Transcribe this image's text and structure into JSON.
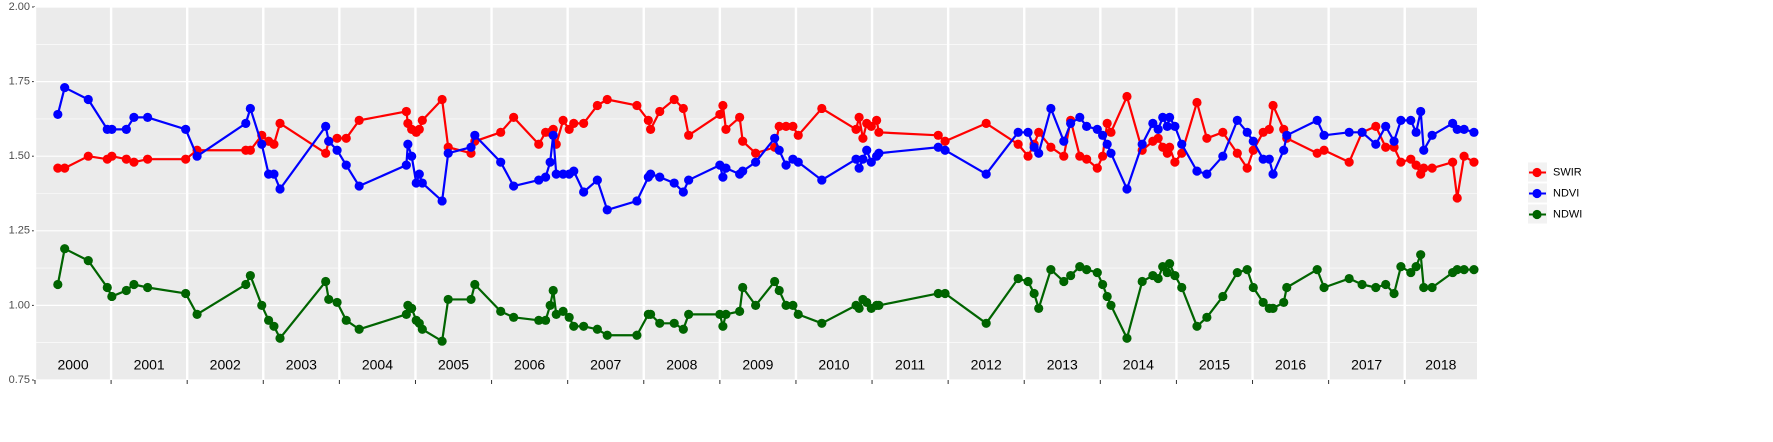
{
  "chart_data": {
    "type": "line",
    "x": [
      2000.3,
      2000.39,
      2000.7,
      2000.95,
      2001.01,
      2001.2,
      2001.3,
      2001.48,
      2001.98,
      2002.13,
      2002.77,
      2002.83,
      2002.98,
      2003.07,
      2003.14,
      2003.22,
      2003.82,
      2003.86,
      2003.97,
      2004.09,
      2004.26,
      2004.88,
      2004.9,
      2004.95,
      2005.01,
      2005.05,
      2005.09,
      2005.35,
      2005.43,
      2005.73,
      2005.78,
      2006.12,
      2006.29,
      2006.62,
      2006.71,
      2006.77,
      2006.81,
      2006.85,
      2006.94,
      2007.02,
      2007.08,
      2007.21,
      2007.39,
      2007.52,
      2007.91,
      2008.06,
      2008.09,
      2008.21,
      2008.4,
      2008.52,
      2008.59,
      2009.0,
      2009.04,
      2009.08,
      2009.26,
      2009.3,
      2009.47,
      2009.72,
      2009.78,
      2009.87,
      2009.96,
      2010.03,
      2010.34,
      2010.79,
      2010.83,
      2010.88,
      2010.93,
      2010.99,
      2011.06,
      2011.09,
      2011.87,
      2011.96,
      2012.5,
      2012.92,
      2013.05,
      2013.13,
      2013.19,
      2013.35,
      2013.52,
      2013.61,
      2013.73,
      2013.82,
      2013.96,
      2014.03,
      2014.09,
      2014.14,
      2014.35,
      2014.55,
      2014.69,
      2014.76,
      2014.82,
      2014.88,
      2014.91,
      2014.98,
      2015.07,
      2015.27,
      2015.4,
      2015.61,
      2015.8,
      2015.93,
      2016.01,
      2016.14,
      2016.22,
      2016.27,
      2016.41,
      2016.45,
      2016.85,
      2016.94,
      2017.27,
      2017.44,
      2017.62,
      2017.75,
      2017.86,
      2017.95,
      2018.08,
      2018.15,
      2018.21,
      2018.25,
      2018.36,
      2018.63,
      2018.69,
      2018.78,
      2018.91
    ],
    "series": [
      {
        "name": "SWIR",
        "color": "#ff0000",
        "values": [
          1.46,
          1.46,
          1.5,
          1.49,
          1.5,
          1.49,
          1.48,
          1.49,
          1.49,
          1.52,
          1.52,
          1.52,
          1.57,
          1.55,
          1.54,
          1.61,
          1.51,
          1.55,
          1.56,
          1.56,
          1.62,
          1.65,
          1.61,
          1.59,
          1.58,
          1.59,
          1.62,
          1.69,
          1.53,
          1.51,
          1.55,
          1.58,
          1.63,
          1.54,
          1.58,
          1.58,
          1.59,
          1.54,
          1.62,
          1.59,
          1.61,
          1.61,
          1.67,
          1.69,
          1.67,
          1.62,
          1.59,
          1.65,
          1.69,
          1.66,
          1.57,
          1.64,
          1.67,
          1.59,
          1.63,
          1.55,
          1.51,
          1.53,
          1.6,
          1.6,
          1.6,
          1.57,
          1.66,
          1.59,
          1.63,
          1.56,
          1.61,
          1.6,
          1.62,
          1.58,
          1.57,
          1.55,
          1.61,
          1.54,
          1.5,
          1.54,
          1.58,
          1.53,
          1.5,
          1.62,
          1.5,
          1.49,
          1.46,
          1.5,
          1.61,
          1.58,
          1.7,
          1.52,
          1.55,
          1.56,
          1.53,
          1.51,
          1.53,
          1.48,
          1.51,
          1.68,
          1.56,
          1.58,
          1.51,
          1.46,
          1.52,
          1.58,
          1.59,
          1.67,
          1.59,
          1.56,
          1.51,
          1.52,
          1.48,
          1.58,
          1.6,
          1.53,
          1.53,
          1.48,
          1.49,
          1.47,
          1.44,
          1.46,
          1.46,
          1.48,
          1.36,
          1.5,
          1.48
        ]
      },
      {
        "name": "NDVI",
        "color": "#0000ff",
        "values": [
          1.64,
          1.73,
          1.69,
          1.59,
          1.59,
          1.59,
          1.63,
          1.63,
          1.59,
          1.5,
          1.61,
          1.66,
          1.54,
          1.44,
          1.44,
          1.39,
          1.6,
          1.55,
          1.52,
          1.47,
          1.4,
          1.47,
          1.54,
          1.5,
          1.41,
          1.44,
          1.41,
          1.35,
          1.51,
          1.53,
          1.57,
          1.48,
          1.4,
          1.42,
          1.43,
          1.48,
          1.57,
          1.44,
          1.44,
          1.44,
          1.45,
          1.38,
          1.42,
          1.32,
          1.35,
          1.43,
          1.44,
          1.43,
          1.41,
          1.38,
          1.42,
          1.47,
          1.43,
          1.46,
          1.44,
          1.45,
          1.48,
          1.56,
          1.52,
          1.47,
          1.49,
          1.48,
          1.42,
          1.49,
          1.46,
          1.49,
          1.52,
          1.48,
          1.5,
          1.51,
          1.53,
          1.52,
          1.44,
          1.58,
          1.58,
          1.53,
          1.51,
          1.66,
          1.55,
          1.61,
          1.63,
          1.6,
          1.59,
          1.57,
          1.54,
          1.51,
          1.39,
          1.54,
          1.61,
          1.59,
          1.63,
          1.6,
          1.63,
          1.6,
          1.54,
          1.45,
          1.44,
          1.5,
          1.62,
          1.58,
          1.55,
          1.49,
          1.49,
          1.44,
          1.52,
          1.57,
          1.62,
          1.57,
          1.58,
          1.58,
          1.54,
          1.6,
          1.55,
          1.62,
          1.62,
          1.58,
          1.65,
          1.52,
          1.57,
          1.61,
          1.59,
          1.59,
          1.58
        ]
      },
      {
        "name": "NDWI",
        "color": "#006400",
        "values": [
          1.07,
          1.19,
          1.15,
          1.06,
          1.03,
          1.05,
          1.07,
          1.06,
          1.04,
          0.97,
          1.07,
          1.1,
          1.0,
          0.95,
          0.93,
          0.89,
          1.08,
          1.02,
          1.01,
          0.95,
          0.92,
          0.97,
          1.0,
          0.99,
          0.95,
          0.94,
          0.92,
          0.88,
          1.02,
          1.02,
          1.07,
          0.98,
          0.96,
          0.95,
          0.95,
          1.0,
          1.05,
          0.97,
          0.98,
          0.96,
          0.93,
          0.93,
          0.92,
          0.9,
          0.9,
          0.97,
          0.97,
          0.94,
          0.94,
          0.92,
          0.97,
          0.97,
          0.93,
          0.97,
          0.98,
          1.06,
          1.0,
          1.08,
          1.05,
          1.0,
          1.0,
          0.97,
          0.94,
          1.0,
          0.99,
          1.02,
          1.01,
          0.99,
          1.0,
          1.0,
          1.04,
          1.04,
          0.94,
          1.09,
          1.08,
          1.04,
          0.99,
          1.12,
          1.08,
          1.1,
          1.13,
          1.12,
          1.11,
          1.07,
          1.03,
          1.0,
          0.89,
          1.08,
          1.1,
          1.09,
          1.13,
          1.11,
          1.14,
          1.1,
          1.06,
          0.93,
          0.96,
          1.03,
          1.11,
          1.12,
          1.06,
          1.01,
          0.99,
          0.99,
          1.01,
          1.06,
          1.12,
          1.06,
          1.09,
          1.07,
          1.06,
          1.07,
          1.04,
          1.13,
          1.11,
          1.13,
          1.17,
          1.06,
          1.06,
          1.11,
          1.12,
          1.12,
          1.12
        ]
      }
    ],
    "xlim": [
      2000,
      2018.95
    ],
    "xticks": [
      2000,
      2001,
      2002,
      2003,
      2004,
      2005,
      2006,
      2007,
      2008,
      2009,
      2010,
      2011,
      2012,
      2013,
      2014,
      2015,
      2016,
      2017,
      2018
    ],
    "ylim": [
      0.75,
      2
    ],
    "yticks": [
      0.75,
      {
        "value": 1,
        "label": "1.00"
      },
      1.25,
      {
        "value": 1.5,
        "label": "1.50"
      },
      1.75,
      {
        "value": 2,
        "label": "2.00"
      }
    ],
    "grid": true,
    "legend": "right"
  }
}
